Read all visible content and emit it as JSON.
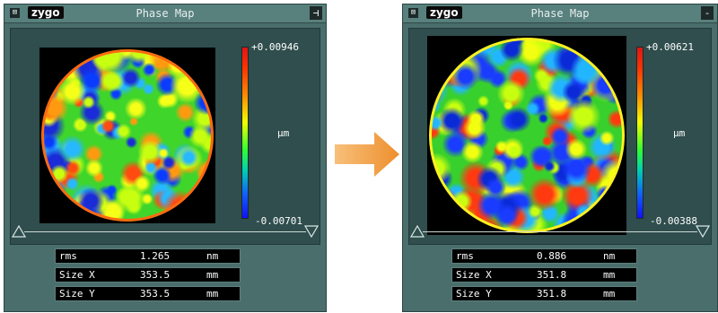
{
  "left_window": {
    "app_logo": "zygo",
    "title": "Phase Map",
    "close_glyph": "⊠",
    "pin_glyph": "⊣",
    "colorbar": {
      "max": "+0.00946",
      "unit": "µm",
      "min": "-0.00701"
    },
    "stats": [
      {
        "label": "rms",
        "value": "1.265",
        "unit": "nm"
      },
      {
        "label": "Size X",
        "value": "353.5",
        "unit": "mm"
      },
      {
        "label": "Size Y",
        "value": "353.5",
        "unit": "mm"
      }
    ]
  },
  "right_window": {
    "app_logo": "zygo",
    "title": "Phase Map",
    "close_glyph": "⊠",
    "pin_glyph": "-",
    "colorbar": {
      "max": "+0.00621",
      "unit": "µm",
      "min": "-0.00388"
    },
    "stats": [
      {
        "label": "rms",
        "value": "0.886",
        "unit": "nm"
      },
      {
        "label": "Size X",
        "value": "351.8",
        "unit": "mm"
      },
      {
        "label": "Size Y",
        "value": "351.8",
        "unit": "mm"
      }
    ]
  },
  "colors": {
    "panel": "#4a6e6c",
    "arrow": "#f4a640",
    "arrow_dark": "#e8892a"
  },
  "icons": [
    "close-icon",
    "pin-icon",
    "zygo-logo",
    "range-marker-icon",
    "arrow-right-icon"
  ]
}
